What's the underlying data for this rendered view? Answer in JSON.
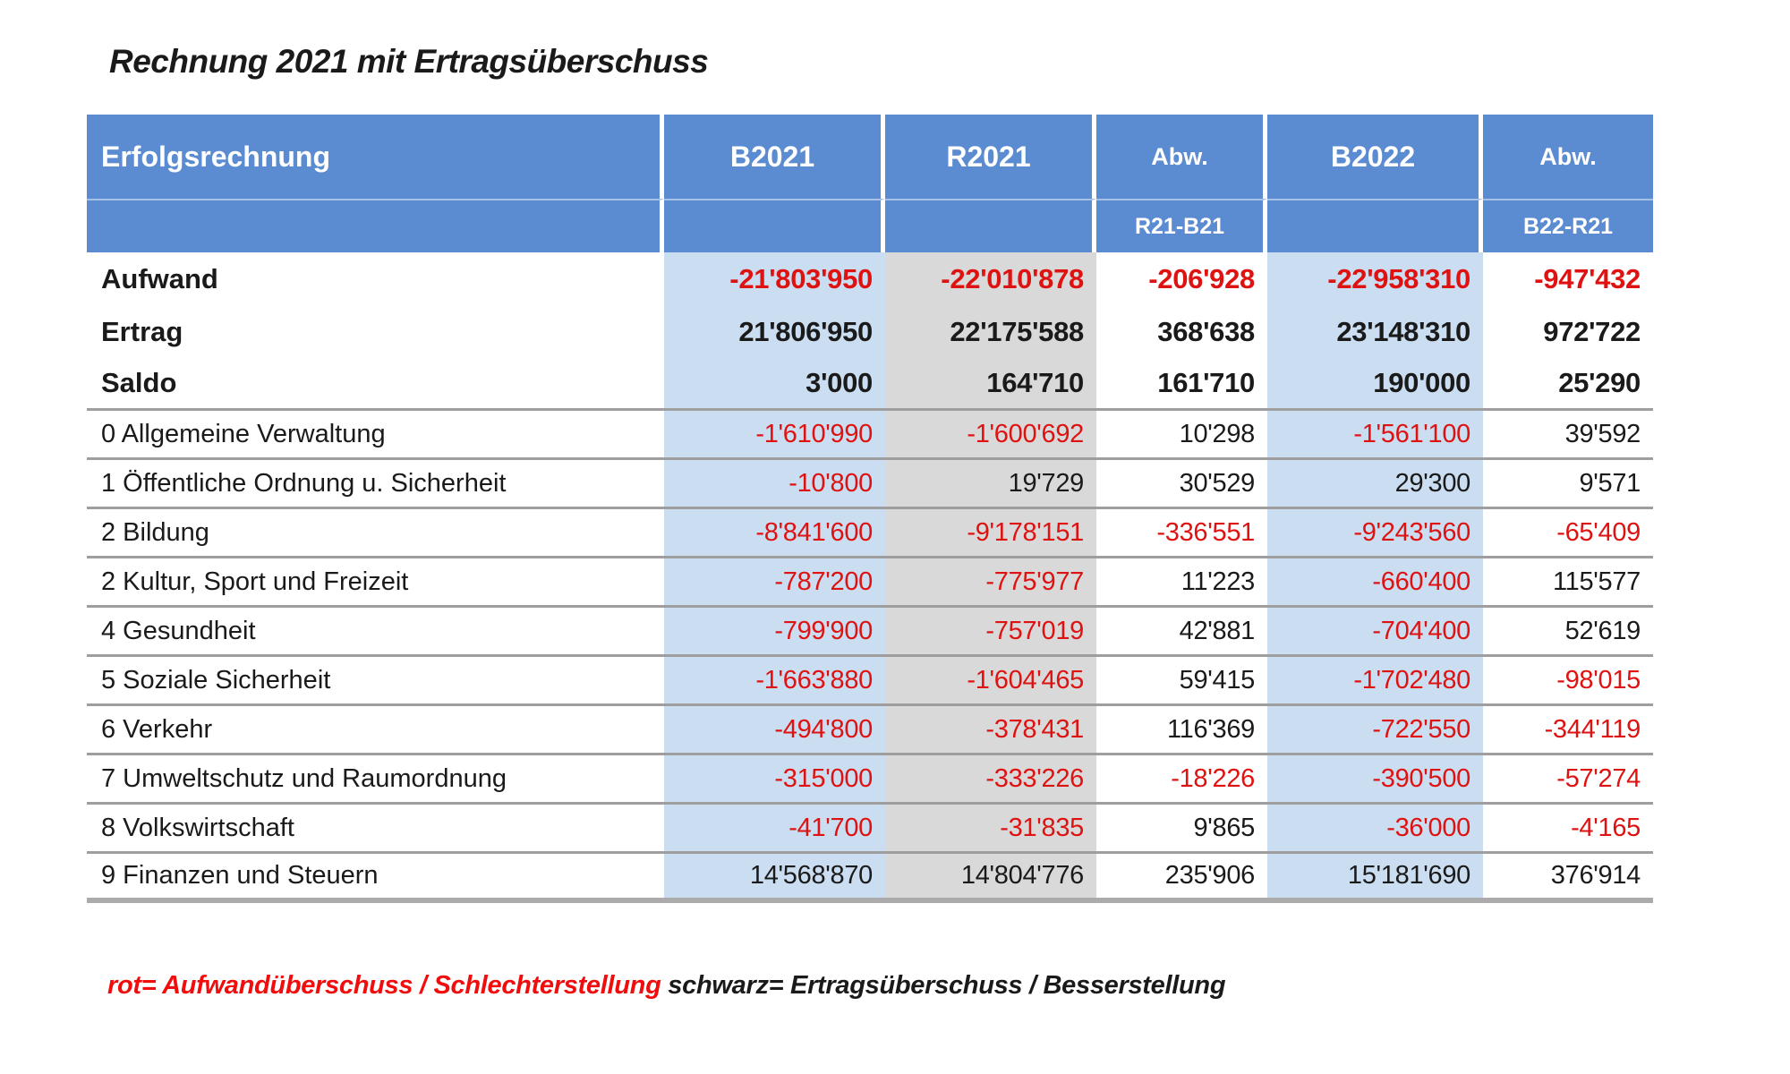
{
  "page_title": "Rechnung 2021 mit Ertragsüberschuss",
  "colors": {
    "header_bg": "#5b8bd0",
    "column_blue": "#cbddf0",
    "column_gray": "#d9d9d9",
    "negative_red": "#df1212",
    "text_black": "#1a1a1a",
    "row_line_gray": "#9e9e9e"
  },
  "table": {
    "header": {
      "title": "Erfolgsrechnung",
      "columns": [
        {
          "line1": "B2021",
          "line2": ""
        },
        {
          "line1": "R2021",
          "line2": ""
        },
        {
          "line1": "Abw.",
          "line2": "R21-B21"
        },
        {
          "line1": "B2022",
          "line2": ""
        },
        {
          "line1": "Abw.",
          "line2": "B22-R21"
        }
      ]
    },
    "summary_rows": [
      {
        "label": "Aufwand",
        "values": [
          "-21'803'950",
          "-22'010'878",
          "-206'928",
          "-22'958'310",
          "-947'432"
        ]
      },
      {
        "label": "Ertrag",
        "values": [
          "21'806'950",
          "22'175'588",
          "368'638",
          "23'148'310",
          "972'722"
        ]
      },
      {
        "label": "Saldo",
        "values": [
          "3'000",
          "164'710",
          "161'710",
          "190'000",
          "25'290"
        ]
      }
    ],
    "rows": [
      {
        "label": "0 Allgemeine Verwaltung",
        "values": [
          "-1'610'990",
          "-1'600'692",
          "10'298",
          "-1'561'100",
          "39'592"
        ]
      },
      {
        "label": "1 Öffentliche Ordnung u. Sicherheit",
        "values": [
          "-10'800",
          "19'729",
          "30'529",
          "29'300",
          "9'571"
        ]
      },
      {
        "label": "2 Bildung",
        "values": [
          "-8'841'600",
          "-9'178'151",
          "-336'551",
          "-9'243'560",
          "-65'409"
        ]
      },
      {
        "label": "2 Kultur, Sport und Freizeit",
        "values": [
          "-787'200",
          "-775'977",
          "11'223",
          "-660'400",
          "115'577"
        ]
      },
      {
        "label": "4 Gesundheit",
        "values": [
          "-799'900",
          "-757'019",
          "42'881",
          "-704'400",
          "52'619"
        ]
      },
      {
        "label": "5 Soziale Sicherheit",
        "values": [
          "-1'663'880",
          "-1'604'465",
          "59'415",
          "-1'702'480",
          "-98'015"
        ]
      },
      {
        "label": "6 Verkehr",
        "values": [
          "-494'800",
          "-378'431",
          "116'369",
          "-722'550",
          "-344'119"
        ]
      },
      {
        "label": "7 Umweltschutz und Raumordnung",
        "values": [
          "-315'000",
          "-333'226",
          "-18'226",
          "-390'500",
          "-57'274"
        ]
      },
      {
        "label": "8 Volkswirtschaft",
        "values": [
          "-41'700",
          "-31'835",
          "9'865",
          "-36'000",
          "-4'165"
        ]
      },
      {
        "label": "9 Finanzen und Steuern",
        "values": [
          "14'568'870",
          "14'804'776",
          "235'906",
          "15'181'690",
          "376'914"
        ]
      }
    ]
  },
  "legend": {
    "red": "rot= Aufwandüberschuss / Schlechterstellung",
    "black": "schwarz= Ertragsüberschuss / Besserstellung"
  }
}
